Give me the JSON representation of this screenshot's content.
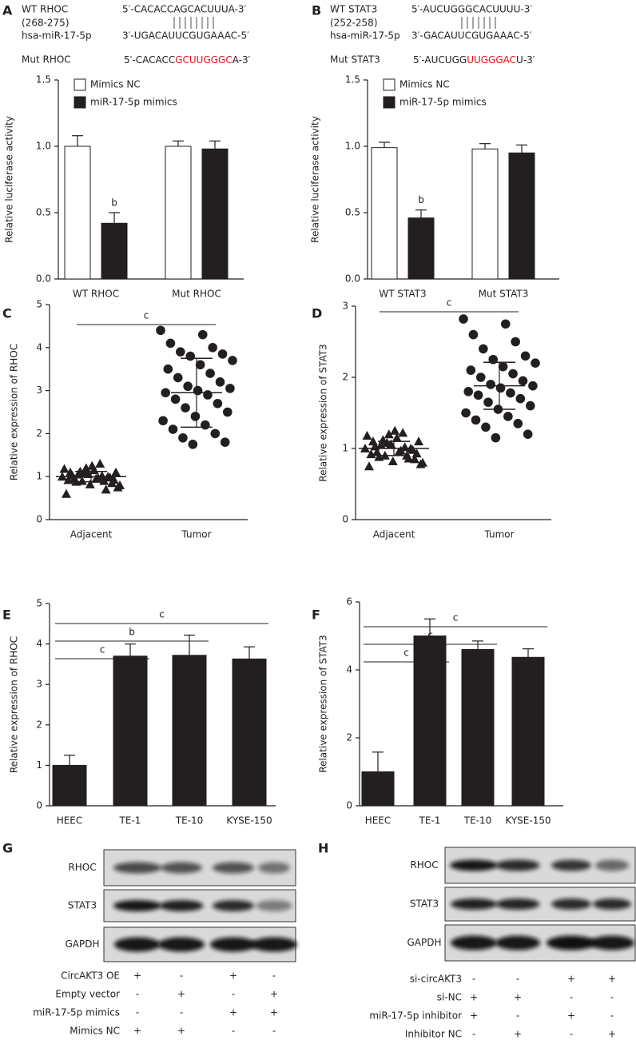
{
  "chart_data": [
    {
      "type": "bar",
      "panel": "A",
      "sequence": {
        "wt_label": "WT RHOC",
        "wt_range": "(268-275)",
        "wt_seq": "5′-CACACCAGCACUUUA-3′",
        "mir_label": "hsa-miR-17-5p",
        "mir_seq": "3′-UGACAUUCGUGAAAC-5′",
        "mut_label": "Mut RHOC",
        "mut_seq": [
          "5′-CACACC",
          "GCUUGGGC",
          "A-3′"
        ]
      },
      "ylabel": "Relative luciferase activity",
      "categories": [
        "WT RHOC",
        "Mut RHOC"
      ],
      "series": [
        {
          "name": "Mimics NC",
          "color": "#ffffff",
          "values": [
            1.0,
            1.0
          ],
          "errors": [
            0.08,
            0.04
          ]
        },
        {
          "name": "miR-17-5p mimics",
          "color": "#231f20",
          "values": [
            0.42,
            0.98
          ],
          "errors": [
            0.08,
            0.06
          ],
          "sig": [
            "b",
            null
          ]
        }
      ],
      "ylim": [
        0,
        1.5
      ],
      "yticks": [
        {
          "value": 0,
          "label": "0.0"
        },
        0.5,
        {
          "value": 1,
          "label": "1.0"
        },
        1.5
      ]
    },
    {
      "type": "bar",
      "panel": "B",
      "sequence": {
        "wt_label": "WT STAT3",
        "wt_range": "(252-258)",
        "wt_seq": "5′-AUCUGGGCACUUUU-3′",
        "mir_label": "hsa-miR-17-5p",
        "mir_seq": "3′-GACAUUCGUGAAAC-5′",
        "mut_label": "Mut STAT3",
        "mut_seq": [
          "5′-AUCUGG",
          "UUGGGAC",
          "U-3′"
        ]
      },
      "ylabel": "Relative luciferase activity",
      "categories": [
        "WT STAT3",
        "Mut STAT3"
      ],
      "series": [
        {
          "name": "Mimics NC",
          "color": "#ffffff",
          "values": [
            0.99,
            0.98
          ],
          "errors": [
            0.04,
            0.04
          ]
        },
        {
          "name": "miR-17-5p mimics",
          "color": "#231f20",
          "values": [
            0.46,
            0.95
          ],
          "errors": [
            0.06,
            0.06
          ],
          "sig": [
            "b",
            null
          ]
        }
      ],
      "ylim": [
        0,
        1.5
      ],
      "yticks": [
        {
          "value": 0,
          "label": "0.0"
        },
        0.5,
        {
          "value": 1,
          "label": "1.0"
        },
        1.5
      ]
    },
    {
      "type": "scatter",
      "panel": "C",
      "ylabel": "Relative expression of RHOC",
      "categories": [
        "Adjacent",
        "Tumor"
      ],
      "groups": [
        {
          "marker": "triangle",
          "values": [
            1.0,
            0.95,
            1.1,
            0.9,
            1.05,
            0.85,
            1.2,
            0.8,
            1.15,
            0.92,
            1.02,
            0.88,
            0.98,
            1.08,
            0.75,
            1.25,
            0.6,
            1.3,
            0.95,
            1.0,
            0.9,
            1.1,
            0.82,
            1.18,
            0.97,
            1.03,
            0.7,
            1.12,
            0.93,
            1.06
          ],
          "mean": 1.0,
          "sd": 0.12
        },
        {
          "marker": "circle",
          "values": [
            4.4,
            4.3,
            4.1,
            4.0,
            3.9,
            3.85,
            3.8,
            3.7,
            3.6,
            3.5,
            3.4,
            3.3,
            3.2,
            3.1,
            3.05,
            3.0,
            2.95,
            2.9,
            2.8,
            2.7,
            2.6,
            2.5,
            2.4,
            2.3,
            2.2,
            2.1,
            2.0,
            1.9,
            1.8,
            1.75
          ],
          "mean": 2.95,
          "sd": 0.8
        }
      ],
      "brackets": [
        {
          "from": "Adjacent",
          "to": "Tumor",
          "label": "c"
        }
      ],
      "ylim": [
        0,
        5
      ],
      "yticks": [
        0,
        1,
        2,
        3,
        4,
        5
      ]
    },
    {
      "type": "scatter",
      "panel": "D",
      "ylabel": "Relative expression of STAT3",
      "categories": [
        "Adjacent",
        "Tumor"
      ],
      "groups": [
        {
          "marker": "triangle",
          "values": [
            1.0,
            0.95,
            1.1,
            0.9,
            1.05,
            0.85,
            1.2,
            0.8,
            1.15,
            0.92,
            1.02,
            0.88,
            0.98,
            1.08,
            0.78,
            1.25,
            0.75,
            1.22,
            0.95,
            1.0,
            0.9,
            1.1,
            0.82,
            1.18,
            0.97,
            1.03,
            0.86,
            1.12,
            0.93,
            1.06
          ],
          "mean": 1.0,
          "sd": 0.1
        },
        {
          "marker": "circle",
          "values": [
            2.82,
            2.75,
            2.6,
            2.5,
            2.4,
            2.3,
            2.25,
            2.2,
            2.15,
            2.1,
            2.05,
            2.0,
            1.95,
            1.9,
            1.88,
            1.85,
            1.8,
            1.78,
            1.75,
            1.7,
            1.65,
            1.6,
            1.55,
            1.5,
            1.45,
            1.4,
            1.35,
            1.3,
            1.2,
            1.15
          ],
          "mean": 1.88,
          "sd": 0.33
        }
      ],
      "brackets": [
        {
          "from": "Adjacent",
          "to": "Tumor",
          "label": "c"
        }
      ],
      "ylim": [
        0,
        3
      ],
      "yticks": [
        0,
        1,
        2,
        3
      ]
    },
    {
      "type": "bar",
      "panel": "E",
      "ylabel": "Relative expression of RHOC",
      "categories": [
        "HEEC",
        "TE-1",
        "TE-10",
        "KYSE-150"
      ],
      "series": [
        {
          "color": "#231f20",
          "values": [
            1.0,
            3.7,
            3.72,
            3.63
          ],
          "errors": [
            0.25,
            0.3,
            0.5,
            0.3
          ]
        }
      ],
      "brackets": [
        {
          "from": "HEEC",
          "to": "TE-1",
          "label": "c"
        },
        {
          "from": "HEEC",
          "to": "TE-10",
          "label": "b"
        },
        {
          "from": "HEEC",
          "to": "KYSE-150",
          "label": "c"
        }
      ],
      "ylim": [
        0,
        5
      ],
      "yticks": [
        0,
        1,
        2,
        3,
        4,
        5
      ]
    },
    {
      "type": "bar",
      "panel": "F",
      "ylabel": "Relative expression of STAT3",
      "categories": [
        "HEEC",
        "TE-1",
        "TE-10",
        "KYSE-150"
      ],
      "series": [
        {
          "color": "#231f20",
          "values": [
            1.0,
            5.0,
            4.6,
            4.37
          ],
          "errors": [
            0.58,
            0.5,
            0.25,
            0.25
          ]
        }
      ],
      "brackets": [
        {
          "from": "HEEC",
          "to": "TE-1",
          "label": "c"
        },
        {
          "from": "HEEC",
          "to": "TE-10",
          "label": "c"
        },
        {
          "from": "HEEC",
          "to": "KYSE-150",
          "label": "c"
        }
      ],
      "ylim": [
        0,
        6
      ],
      "yticks": [
        0,
        2,
        4,
        6
      ]
    }
  ],
  "blots": [
    {
      "panel": "G",
      "proteins": [
        "RHOC",
        "STAT3",
        "GAPDH"
      ],
      "conditions": [
        {
          "label": "CircAKT3 OE",
          "signs": [
            "+",
            "-",
            "+",
            "-"
          ]
        },
        {
          "label": "Empty vector",
          "signs": [
            "-",
            "+",
            "-",
            "+"
          ]
        },
        {
          "label": "miR-17-5p mimics",
          "signs": [
            "-",
            "-",
            "+",
            "+"
          ]
        },
        {
          "label": "Mimics NC",
          "signs": [
            "+",
            "+",
            "-",
            "-"
          ]
        }
      ]
    },
    {
      "panel": "H",
      "proteins": [
        "RHOC",
        "STAT3",
        "GAPDH"
      ],
      "conditions": [
        {
          "label": "si-circAKT3",
          "signs": [
            "-",
            "-",
            "+",
            "+"
          ]
        },
        {
          "label": "si-NC",
          "signs": [
            "+",
            "+",
            "-",
            "-"
          ]
        },
        {
          "label": "miR-17-5p inhibitor",
          "signs": [
            "+",
            "-",
            "+",
            "-"
          ]
        },
        {
          "label": "Inhibitor NC",
          "signs": [
            "-",
            "+",
            "-",
            "+"
          ]
        }
      ]
    }
  ]
}
